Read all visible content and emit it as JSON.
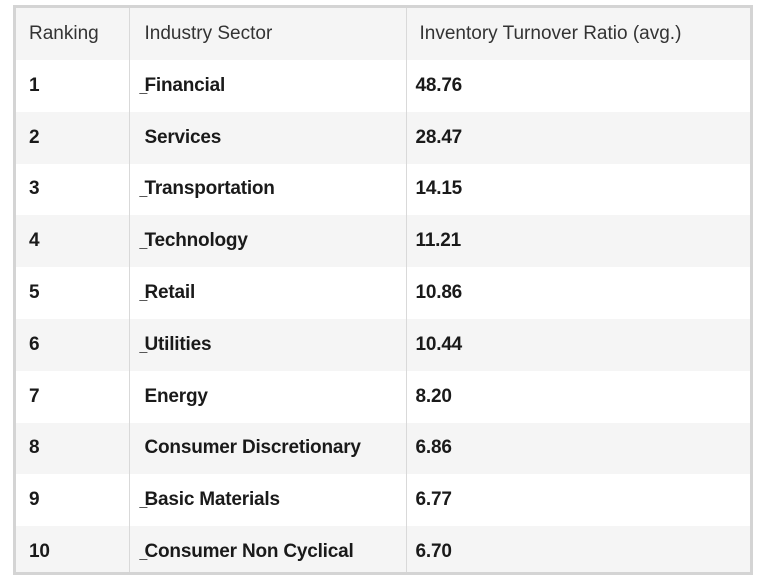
{
  "table": {
    "headers": {
      "rank": "Ranking",
      "sector": "Industry Sector",
      "ratio": "Inventory Turnover Ratio (avg.)"
    },
    "rows": [
      {
        "rank": "1",
        "sector": "Financial",
        "ratio": "48.76",
        "mark": "_"
      },
      {
        "rank": "2",
        "sector": "Services",
        "ratio": "28.47",
        "mark": ""
      },
      {
        "rank": "3",
        "sector": "Transportation",
        "ratio": "14.15",
        "mark": "_"
      },
      {
        "rank": "4",
        "sector": "Technology",
        "ratio": "11.21",
        "mark": "_"
      },
      {
        "rank": "5",
        "sector": "Retail",
        "ratio": "10.86",
        "mark": "_"
      },
      {
        "rank": "6",
        "sector": "Utilities",
        "ratio": "10.44",
        "mark": "_"
      },
      {
        "rank": "7",
        "sector": "Energy",
        "ratio": "8.20",
        "mark": ""
      },
      {
        "rank": "8",
        "sector": "Consumer Discretionary",
        "ratio": "6.86",
        "mark": ""
      },
      {
        "rank": "9",
        "sector": "Basic Materials",
        "ratio": "6.77",
        "mark": "_"
      },
      {
        "rank": "10",
        "sector": "Consumer Non Cyclical",
        "ratio": "6.70",
        "mark": "_"
      }
    ]
  }
}
